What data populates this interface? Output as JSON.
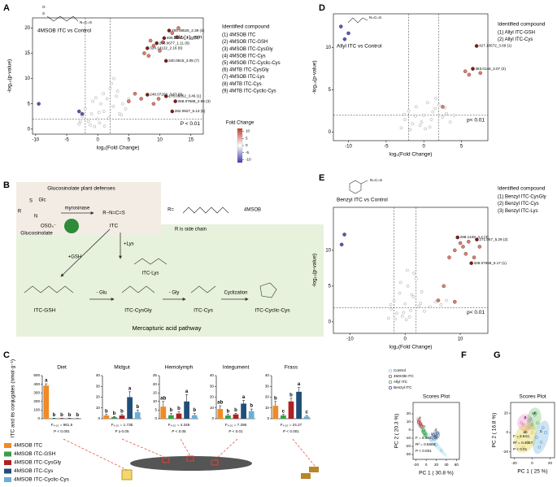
{
  "panel_labels": [
    "A",
    "B",
    "C",
    "D",
    "E",
    "F",
    "G"
  ],
  "diagram": {
    "labels": [
      "Glucosinolate plant defenses",
      "Glc",
      "S",
      "R",
      "N",
      "OSO₃⁻",
      "Glucosinolate",
      "myrosinase",
      "R−N=C=S",
      "ITC",
      "R=",
      "4MSOB",
      "R is side chain",
      "+Lys",
      "+GSH",
      "ITC-Lys",
      "ITC-GSH",
      "- Glu",
      "ITC-CysGly",
      "- Gly",
      "ITC-Cys",
      "Cyclization",
      "ITC-Cyclic-Cys",
      "Mercapturic acid pathway"
    ]
  },
  "legend": {
    "names": [
      "4MSOB ITC",
      "4MSOB ITC-GSH",
      "4MSOB ITC-CysGly",
      "4MSOB ITC-Cys",
      "4MSOB ITC-Cyclic-Cys"
    ],
    "colors": [
      "#f08a24",
      "#3a9e48",
      "#b01f24",
      "#1f4e79",
      "#6baed6"
    ]
  },
  "chart_data": [
    {
      "type": "volcano",
      "title": "4MSOB ITC vs Control",
      "structure": [
        "O",
        "S",
        "N=C=S"
      ],
      "xlabel": "log₂(Fold Change)",
      "ylabel": "-log₁₀(p-value)",
      "xlim": [
        -10.5,
        17
      ],
      "ylim": [
        -1,
        22
      ],
      "xticks": [
        -10,
        -5,
        0,
        5,
        10,
        15
      ],
      "yticks": [
        0,
        5,
        10,
        15,
        20
      ],
      "vlines": [
        -2,
        2
      ],
      "hlines": [
        2
      ],
      "threshold_label": "P < 0.01",
      "annotation": "m/z (+)_min",
      "legend_title": "Identified compound",
      "legend_items": [
        "(1) 4MSOB ITC",
        "(2) 4MSOB ITC-GSH",
        "(3) 4MSOB ITC-CysGly",
        "(4) 4MSOB ITC-Cys",
        "(5) 4MSOB ITC-Cyclic-Cys",
        "(6) 4MTB ITC-CysGly",
        "(7) 4MSOB ITC-Lys",
        "(8) 4MTB ITC-Cys",
        "(9) 4MTB ITC-Cyclic-Cys"
      ],
      "colorbar": {
        "title": "Fold Change",
        "lim": [
          -12,
          12
        ],
        "ticks": [
          10,
          5,
          0,
          -5,
          -10
        ],
        "colors": [
          "#3b3bb0",
          "#ffffff",
          "#c0392b"
        ]
      },
      "series": [
        {
          "color": "#bbbbbb",
          "x": [
            -3,
            -2.5,
            -2,
            -1.5,
            -1,
            -0.5,
            0,
            0.5,
            1,
            1.5,
            2,
            2.5,
            3,
            3.5,
            4,
            -1.2,
            0.3,
            1.8,
            2.2,
            -0.8,
            0.9,
            3.2,
            4.5,
            5,
            -2.8,
            1.1,
            0.2,
            -0.3,
            2.6,
            3.8
          ],
          "values": [
            1,
            2.5,
            4,
            1.5,
            3,
            0.5,
            2,
            5,
            3.5,
            6,
            8,
            4.5,
            6.5,
            3,
            5,
            0.8,
            1.2,
            2.2,
            9,
            5.5,
            7,
            7.5,
            4,
            6,
            1.5,
            0.6,
            3.3,
            6.2,
            10,
            2.8
          ]
        },
        {
          "color": "#e07b6a",
          "x": [
            8.5,
            9,
            7.5,
            10,
            13,
            12,
            8.2,
            6,
            7,
            9,
            5,
            12.8,
            10.5,
            9.8
          ],
          "values": [
            17.5,
            16.5,
            15,
            15.5,
            20,
            19,
            14.5,
            7,
            6,
            5,
            5.5,
            18.2,
            17.2,
            6
          ]
        },
        {
          "color": "#7a1c14",
          "x": [
            11.5,
            10.7,
            9.5,
            8,
            11,
            8,
            11,
            12.5,
            12
          ],
          "values": [
            19.5,
            18,
            17,
            16,
            13.5,
            6.8,
            6.5,
            5.5,
            3.5
          ],
          "labels": [
            "299.08525_2.39 (4)",
            "405.11462_3.15 (2)",
            "266.0677_1.11 (8)",
            "324.14122_2.16 (6)",
            "340.0816_3.05 (7)",
            "248.07203_3.67 (9)",
            "176.05052_3.46 (1)",
            "268.07668_2.95 (3)",
            "282.0927_5.13 (5)"
          ]
        },
        {
          "color": "#5555bb",
          "x": [
            -9.5,
            -3,
            -2.5
          ],
          "values": [
            5,
            3.5,
            3
          ]
        }
      ]
    },
    {
      "type": "volcano",
      "title": "Allyl ITC vs Control",
      "structure": [
        "N=C=S"
      ],
      "xlabel": "log₂(Fold Change)",
      "ylabel": "-log₁₀(p-value)",
      "xlim": [
        -12,
        8.5
      ],
      "ylim": [
        -1,
        14
      ],
      "xticks": [
        -10,
        -5,
        0,
        5
      ],
      "yticks": [
        0,
        5,
        10
      ],
      "vlines": [
        -2,
        2
      ],
      "hlines": [
        2
      ],
      "threshold_label": "p< 0.01",
      "legend_title": "Identified compound",
      "legend_items": [
        "(1) Allyl ITC-GSH",
        "(2) Allyl ITC-Cys"
      ],
      "series": [
        {
          "color": "#bbbbbb",
          "x": [
            -3,
            -2.5,
            -2,
            -1.5,
            -1,
            -0.5,
            0,
            0.5,
            1,
            1.5,
            2,
            2.5,
            3,
            -1.8,
            0.8,
            1.6,
            -0.3,
            2.8,
            -2.6,
            0.2,
            1.2,
            -1.1,
            3.5,
            4
          ],
          "values": [
            0.5,
            1.5,
            2.5,
            1,
            3,
            0.8,
            2,
            3.5,
            1.5,
            2.8,
            3.2,
            1.8,
            2.2,
            0.3,
            0.6,
            4,
            1.2,
            2.9,
            2.1,
            0.4,
            2.4,
            1.9,
            1.2,
            2
          ]
        },
        {
          "color": "#e07b6a",
          "x": [
            5.5,
            7.5,
            2.5,
            6
          ],
          "values": [
            7.2,
            7,
            3,
            6.8
          ]
        },
        {
          "color": "#7a1c14",
          "x": [
            7,
            6.5
          ],
          "values": [
            10.2,
            7.5
          ],
          "labels": [
            "427.10572_3.69 (1)",
            "363.0146_3.07 (2)"
          ]
        },
        {
          "color": "#5555bb",
          "x": [
            -11,
            -10,
            -10.5
          ],
          "values": [
            12.5,
            11.7,
            11
          ]
        }
      ]
    },
    {
      "type": "volcano",
      "title": "Benzyl ITC vs Control",
      "structure": [
        "N=C=S"
      ],
      "xlabel": "log₂(Fold Change)",
      "ylabel": "-log₁₀(p-value)",
      "xlim": [
        -13,
        15
      ],
      "ylim": [
        -1.6,
        16
      ],
      "xticks": [
        -10,
        0,
        10
      ],
      "yticks": [
        0,
        5,
        10
      ],
      "vlines": [
        -2,
        2
      ],
      "hlines": [
        2
      ],
      "threshold_label": "p< 0.01",
      "legend_title": "Identified compound",
      "legend_items": [
        "(1) Benzyl ITC-CysGly",
        "(2) Benzyl ITC-Cys",
        "(3) Benzyl ITC-Lys"
      ],
      "series": [
        {
          "color": "#bbbbbb",
          "x": [
            -3,
            -2.5,
            -2,
            -1.5,
            -1,
            -0.5,
            0,
            0.5,
            1,
            1.5,
            2,
            2.5,
            3,
            -1.8,
            0.8,
            1.6,
            -0.3,
            2.8,
            -2.6,
            0.2,
            1.2,
            3.5,
            4.5,
            5.5,
            6.5,
            7.5,
            -0.8,
            0.4
          ],
          "values": [
            0.5,
            1.8,
            3,
            1.2,
            4,
            0.8,
            2.5,
            5,
            1.6,
            3.5,
            6,
            2.2,
            4.2,
            0.4,
            0.7,
            6.8,
            1.3,
            2.6,
            2.4,
            0.3,
            3.8,
            1.5,
            2.1,
            2.8,
            2.4,
            3,
            5.5,
            7.2
          ]
        },
        {
          "color": "#e07b6a",
          "x": [
            10,
            10.5,
            11,
            8,
            9,
            12.5,
            7,
            6,
            9,
            13.5,
            11.5
          ],
          "values": [
            11,
            10.5,
            9.5,
            9,
            10,
            9,
            5,
            3,
            2.8,
            10.5,
            11.2
          ]
        },
        {
          "color": "#7a1c14",
          "x": [
            9.5,
            13,
            12
          ],
          "values": [
            11.8,
            11.5,
            8.2
          ],
          "labels": [
            "298.1429_4.4 (3)",
            "271.057_5.29 (2)",
            "328.07659_5.17 (1)"
          ]
        },
        {
          "color": "#5555bb",
          "x": [
            -11,
            -11.5
          ],
          "values": [
            12.2,
            10.8
          ]
        }
      ]
    },
    {
      "type": "bar",
      "title": "Diet",
      "ylabel": "ITC and its conjugates (nmol·g⁻¹)",
      "values": [
        385,
        5,
        4,
        4,
        3
      ],
      "errors": [
        20,
        1,
        1,
        1,
        1
      ],
      "letters": [
        "a",
        "b",
        "b",
        "b",
        "b"
      ],
      "stats": [
        "F₄,₂₀ = 961.5",
        "P < 0.001"
      ],
      "ylim": [
        0,
        500
      ],
      "yticks": [
        0,
        100,
        200,
        300,
        400,
        500
      ]
    },
    {
      "type": "bar",
      "title": "Midgut",
      "values": [
        3,
        1.5,
        3,
        20,
        6
      ],
      "errors": [
        1,
        0.5,
        1,
        5,
        2
      ],
      "letters": [
        "b",
        "b",
        "b",
        "a",
        "b"
      ],
      "stats": [
        "F₄,₂₀ = 1.735",
        "P ≥ 0.05"
      ],
      "ylim": [
        0,
        40
      ],
      "yticks": [
        0,
        10,
        20,
        30,
        40
      ]
    },
    {
      "type": "bar",
      "title": "Hemolymph",
      "values": [
        7,
        2,
        3,
        10,
        2
      ],
      "errors": [
        3,
        1,
        1,
        4,
        1
      ],
      "letters": [
        "ab",
        "b",
        "b",
        "a",
        "b"
      ],
      "stats": [
        "F₄,₂₀ = 4.349",
        "P < 0.05"
      ],
      "ylim": [
        0,
        25
      ],
      "yticks": [
        0,
        5,
        10,
        15,
        20,
        25
      ]
    },
    {
      "type": "bar",
      "title": "Integument",
      "values": [
        9,
        3,
        4,
        14,
        7
      ],
      "errors": [
        3,
        1,
        1,
        3,
        2
      ],
      "letters": [
        "ab",
        "b",
        "b",
        "a",
        "b"
      ],
      "stats": [
        "F₄,₂₀ = 7.286",
        "P < 0.01"
      ],
      "ylim": [
        0,
        40
      ],
      "yticks": [
        0,
        10,
        20,
        30,
        40
      ]
    },
    {
      "type": "bar",
      "title": "Frass",
      "values": [
        12,
        3,
        16,
        25,
        2
      ],
      "errors": [
        4,
        1,
        3,
        4,
        1
      ],
      "letters": [
        "b",
        "c",
        "b",
        "a",
        "c"
      ],
      "stats": [
        "F₄,₂₀ = 24.27",
        "P < 0.001"
      ],
      "ylim": [
        0,
        40
      ],
      "yticks": [
        0,
        10,
        20,
        30,
        40
      ]
    },
    {
      "type": "pca",
      "title": "Scores Plot",
      "xlabel": "PC 1 ( 30.8 %)",
      "ylabel": "PC 2 ( 20.3 %)",
      "xlim": [
        -26,
        66
      ],
      "ylim": [
        -36,
        34
      ],
      "xticks": [
        -20,
        0,
        20,
        40,
        60
      ],
      "yticks": [
        -30,
        -20,
        -10,
        0,
        10,
        20
      ],
      "stats": [
        "F = 6.982;",
        "R² = 0.5669;",
        "P < 0.001"
      ],
      "legend": true,
      "series": [
        {
          "name": "Control",
          "color": "#7ec8e3",
          "letter": "c",
          "x": [
            0,
            10,
            20,
            30,
            -5
          ],
          "values": [
            -5,
            -12,
            -18,
            -25,
            0
          ]
        },
        {
          "name": "4MSOB ITC",
          "color": "#b03030",
          "letter": "a",
          "x": [
            -15,
            -12,
            -10,
            -14,
            -11
          ],
          "values": [
            10,
            8,
            5,
            12,
            7
          ]
        },
        {
          "name": "Allyl ITC",
          "color": "#2ca02c",
          "letter": "b",
          "x": [
            -6,
            -3,
            -5,
            -2
          ],
          "values": [
            -2,
            -4,
            0,
            -6
          ]
        },
        {
          "name": "Benzyl ITC",
          "color": "#1f3f7a",
          "letter": "d",
          "x": [
            15,
            18,
            22,
            20
          ],
          "values": [
            -6,
            -9,
            -4,
            -8
          ]
        }
      ]
    },
    {
      "type": "pca",
      "title": "Scores Plot",
      "xlabel": "PC 1 ( 25 %)",
      "ylabel": "PC 2 ( 16.8 %)",
      "xlim": [
        -24,
        25
      ],
      "ylim": [
        -26,
        31
      ],
      "xticks": [
        -20,
        0,
        20
      ],
      "yticks": [
        -20,
        0,
        20
      ],
      "stats": [
        "F = 3.641;",
        "R² = 0.4057;",
        "P < 0.01"
      ],
      "legend": false,
      "series": [
        {
          "color": "#e377c2",
          "letter": "a",
          "x": [
            -12,
            -8,
            -5,
            -10,
            -3
          ],
          "values": [
            10,
            15,
            5,
            8,
            12
          ]
        },
        {
          "color": "#5cb85c",
          "letter": "ab",
          "x": [
            -2,
            3,
            6,
            0,
            4
          ],
          "values": [
            14,
            18,
            10,
            8,
            20
          ]
        },
        {
          "color": "#d9c81e",
          "letter": "ab",
          "x": [
            -15,
            -5,
            0,
            -10,
            -8
          ],
          "values": [
            -5,
            -10,
            0,
            -15,
            2
          ]
        },
        {
          "color": "#5da5d6",
          "letter": "b",
          "x": [
            5,
            10,
            15,
            8,
            12
          ],
          "values": [
            -5,
            -10,
            0,
            -15,
            5
          ]
        }
      ]
    }
  ]
}
